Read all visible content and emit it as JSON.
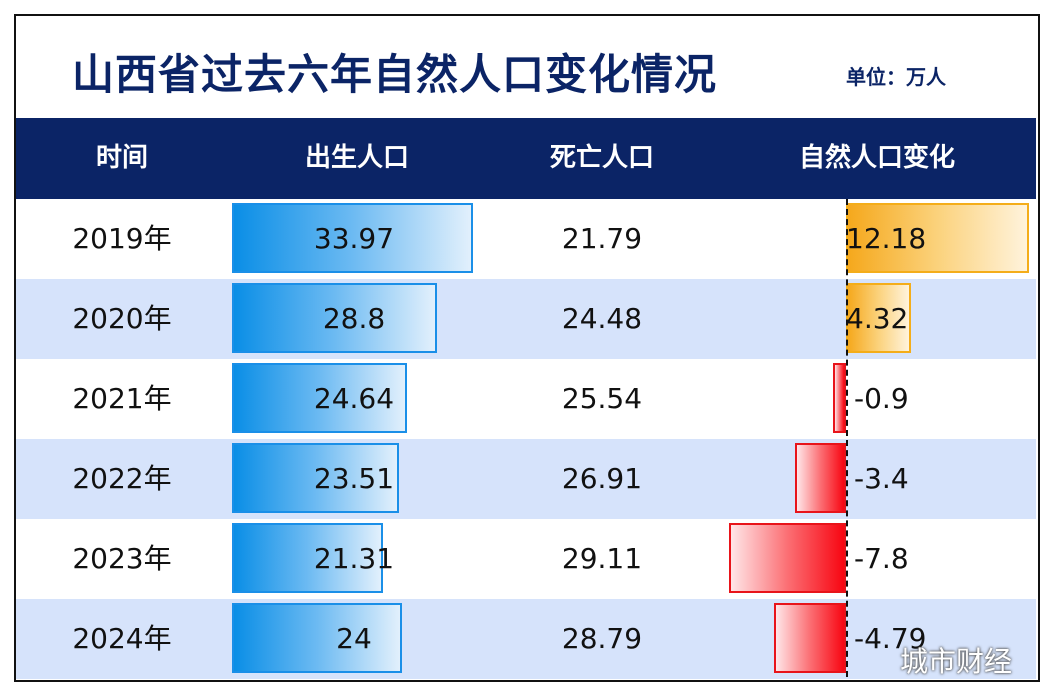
{
  "title": "山西省过去六年自然人口变化情况",
  "unit": "单位：万人",
  "watermark": "城市财经",
  "headers": {
    "year": "时间",
    "births": "出生人口",
    "deaths": "死亡人口",
    "change": "自然人口变化"
  },
  "colors": {
    "header_bg": "#0b2466",
    "title": "#0b2466",
    "alt_row": "#d6e3fb",
    "births_bar": "#0a8ee6",
    "positive_bar": "#f5a81c",
    "negative_bar": "#f80612"
  },
  "chart_data": {
    "type": "table",
    "categories": [
      "2019年",
      "2020年",
      "2021年",
      "2022年",
      "2023年",
      "2024年"
    ],
    "series": [
      {
        "name": "出生人口",
        "values": [
          33.97,
          28.8,
          24.64,
          23.51,
          21.31,
          24
        ],
        "labels": [
          "33.97",
          "28.8",
          "24.64",
          "23.51",
          "21.31",
          "24"
        ]
      },
      {
        "name": "死亡人口",
        "values": [
          21.79,
          24.48,
          25.54,
          26.91,
          29.11,
          28.79
        ],
        "labels": [
          "21.79",
          "24.48",
          "25.54",
          "26.91",
          "29.11",
          "28.79"
        ]
      },
      {
        "name": "自然人口变化",
        "values": [
          12.18,
          4.32,
          -0.9,
          -3.4,
          -7.8,
          -4.79
        ],
        "labels": [
          "12.18",
          "4.32",
          "-0.9",
          "-3.4",
          "-7.8",
          "-4.79"
        ]
      }
    ]
  }
}
